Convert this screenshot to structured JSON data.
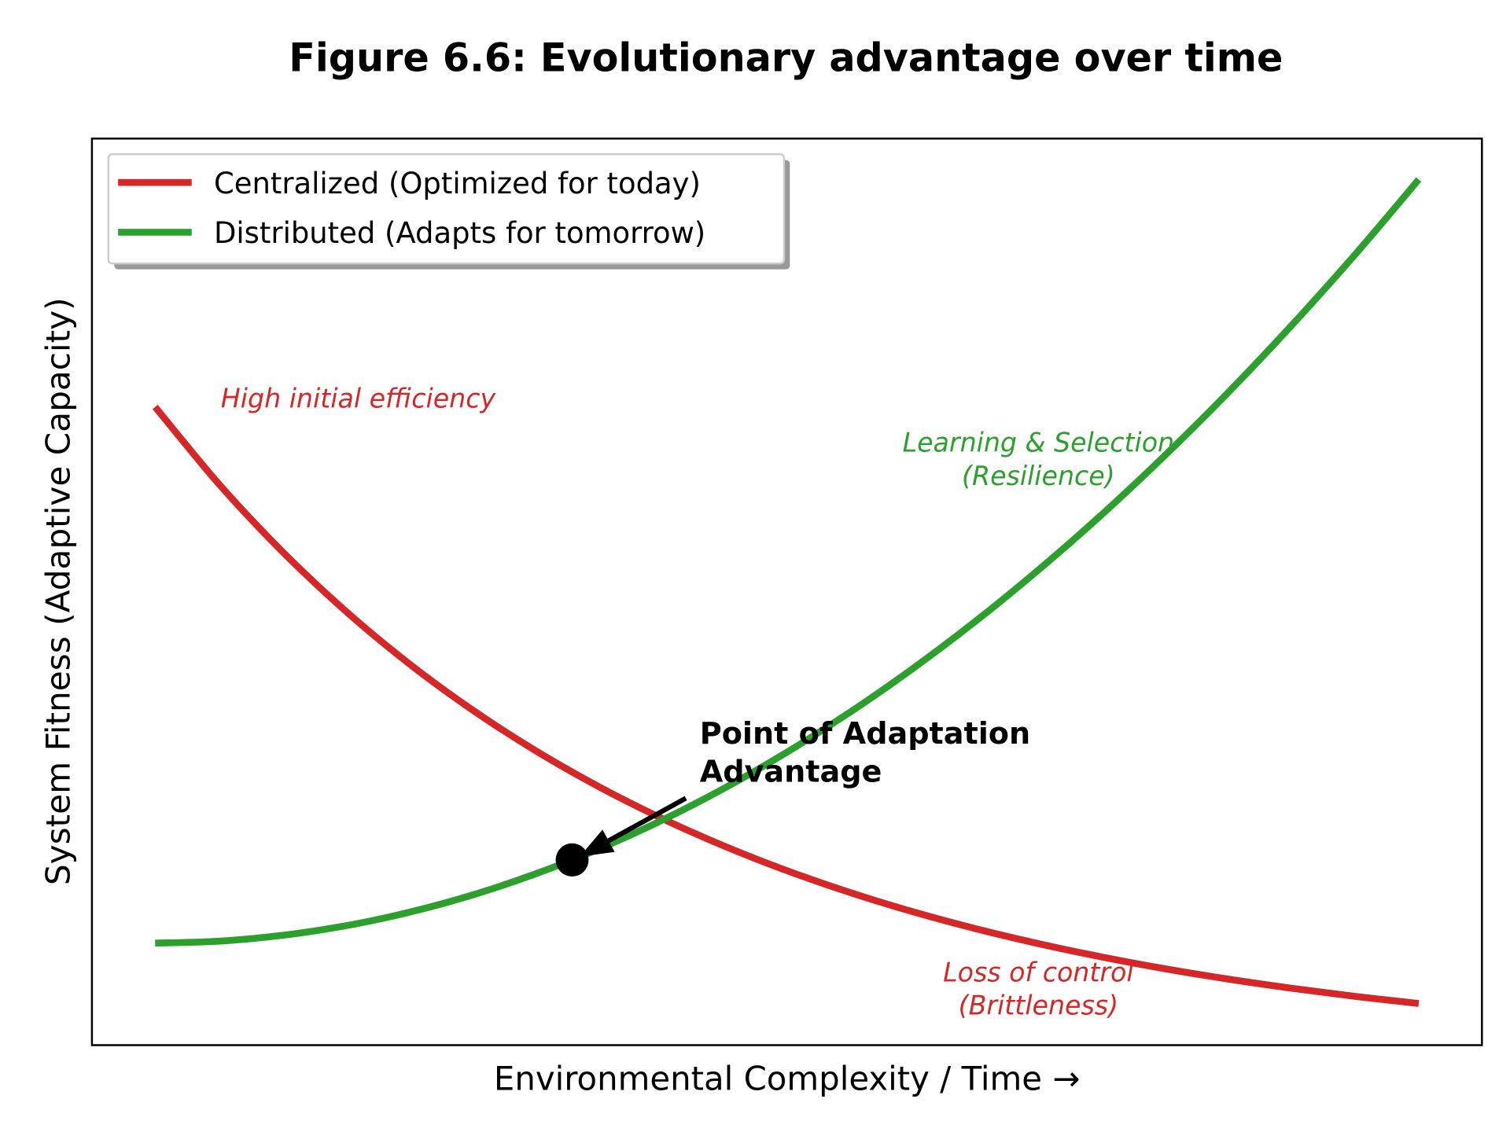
{
  "chart_data": {
    "type": "line",
    "title": "Figure 6.6: Evolutionary advantage over time",
    "xlabel": "Environmental Complexity / Time →",
    "ylabel": "System Fitness (Adaptive Capacity)",
    "xlim": [
      -0.5,
      10.5
    ],
    "ylim": [
      0.18,
      14.13
    ],
    "grid": false,
    "ticks": false,
    "legend": {
      "placement": "top-left",
      "shadow": true
    },
    "x": [
      0,
      0.5,
      1,
      1.5,
      2,
      2.5,
      3,
      3.5,
      4,
      4.5,
      5,
      5.5,
      6,
      6.5,
      7,
      7.5,
      8,
      8.5,
      9,
      9.5,
      10
    ],
    "series": [
      {
        "name": "Centralized (Optimized for today)",
        "color": "#d62728",
        "values": [
          10,
          8.825,
          7.788,
          6.873,
          6.065,
          5.353,
          4.724,
          4.169,
          3.679,
          3.247,
          2.865,
          2.528,
          2.231,
          1.969,
          1.738,
          1.534,
          1.353,
          1.194,
          1.054,
          0.93,
          0.821
        ]
      },
      {
        "name": "Distributed (Adapts for tomorrow)",
        "color": "#2ca02c",
        "values": [
          1.75,
          1.779,
          1.868,
          2.014,
          2.22,
          2.484,
          2.808,
          3.189,
          3.63,
          4.129,
          4.688,
          5.304,
          5.98,
          6.714,
          7.508,
          8.359,
          9.27,
          10.239,
          11.268,
          12.354,
          13.5
        ]
      }
    ],
    "marker": {
      "x": 3.3,
      "y": 3.03,
      "color": "#000000"
    },
    "annotations": [
      {
        "lines": [
          "High initial efficiency"
        ],
        "x": 0.52,
        "y": 10.14,
        "color": "#d62728",
        "style": "italic",
        "align": "start"
      },
      {
        "lines": [
          "Learning & Selection",
          "(Resilience)"
        ],
        "x": 6.99,
        "y": 9.46,
        "color": "#2ca02c",
        "style": "italic",
        "align": "middle"
      },
      {
        "lines": [
          "Loss of control",
          "(Brittleness)"
        ],
        "x": 6.99,
        "y": 1.31,
        "color": "#d62728",
        "style": "italic",
        "align": "middle"
      },
      {
        "lines": [
          "Point of Adaptation",
          "Advantage"
        ],
        "x": 4.31,
        "y": 4.97,
        "color": "#000000",
        "style": "bold",
        "align": "start",
        "arrow_from": [
          4.2,
          3.98
        ],
        "arrow_to": [
          3.36,
          3.08
        ]
      }
    ]
  }
}
